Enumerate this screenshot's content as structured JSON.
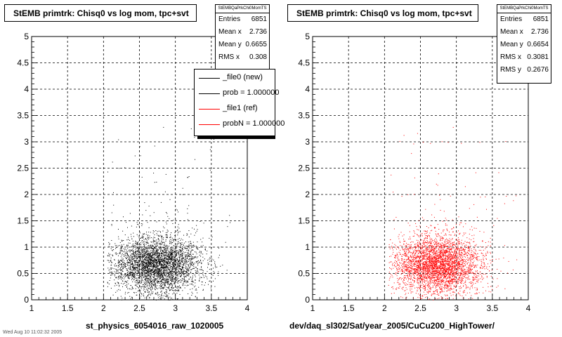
{
  "panels": [
    {
      "title": "StEMB primtrk: Chisq0 vs log mom, tpc+svt",
      "xlabel": "st_physics_6054016_raw_1020005",
      "stats": {
        "name": "StEMBQaPrkChi0MomTS",
        "rows": [
          {
            "label": "Entries",
            "value": "6851"
          },
          {
            "label": "Mean x",
            "value": "2.736"
          },
          {
            "label": "Mean y",
            "value": "0.6655"
          },
          {
            "label": "RMS x",
            "value": "0.308"
          }
        ]
      },
      "legend": [
        {
          "label": "_file0 (new)",
          "color": "#000000"
        },
        {
          "label": "prob = 1.000000",
          "color": "#000000"
        },
        {
          "label": "_file1 (ref)",
          "color": "#ff0000"
        },
        {
          "label": "probN = 1.000000",
          "color": "#ff0000"
        }
      ]
    },
    {
      "title": "StEMB primtrk: Chisq0 vs log mom, tpc+svt",
      "xlabel": "dev/daq_sl302/Sat/year_2005/CuCu200_HighTower/",
      "stats": {
        "name": "StEMBQaPrkChi0MomTS",
        "rows": [
          {
            "label": "Entries",
            "value": "6851"
          },
          {
            "label": "Mean x",
            "value": "2.736"
          },
          {
            "label": "Mean y",
            "value": "0.6654"
          },
          {
            "label": "RMS x",
            "value": "0.3081"
          },
          {
            "label": "RMS y",
            "value": "0.2676"
          }
        ]
      }
    }
  ],
  "footer": "Wed Aug 10 11:02:32 2005",
  "colors": {
    "new": "#000000",
    "ref": "#ff0000",
    "grid": "#000000",
    "background": "#ffffff"
  },
  "chart_data": [
    {
      "type": "scatter",
      "title": "StEMB primtrk: Chisq0 vs log mom, tpc+svt",
      "xlabel": "st_physics_6054016_raw_1020005",
      "ylabel": "",
      "xlim": [
        1,
        4
      ],
      "ylim": [
        0,
        5
      ],
      "xticks": [
        "1",
        "1.5",
        "2",
        "2.5",
        "3",
        "3.5",
        "4"
      ],
      "yticks": [
        "0",
        "0.5",
        "1",
        "1.5",
        "2",
        "2.5",
        "3",
        "3.5",
        "4",
        "4.5",
        "5"
      ],
      "grid": true,
      "series": [
        {
          "name": "_file0 (new)",
          "color": "#000000",
          "entries": 6851,
          "x_range": [
            2.05,
            3.85
          ],
          "y_range": [
            0.0,
            3.3
          ],
          "mean_x": 2.736,
          "mean_y": 0.6655,
          "rms_x": 0.308
        }
      ]
    },
    {
      "type": "scatter",
      "title": "StEMB primtrk: Chisq0 vs log mom, tpc+svt",
      "xlabel": "dev/daq_sl302/Sat/year_2005/CuCu200_HighTower/",
      "ylabel": "",
      "xlim": [
        1,
        4
      ],
      "ylim": [
        0,
        5
      ],
      "xticks": [
        "1",
        "1.5",
        "2",
        "2.5",
        "3",
        "3.5",
        "4"
      ],
      "yticks": [
        "0",
        "0.5",
        "1",
        "1.5",
        "2",
        "2.5",
        "3",
        "3.5",
        "4",
        "4.5",
        "5"
      ],
      "grid": true,
      "series": [
        {
          "name": "_file1 (ref)",
          "color": "#ff0000",
          "entries": 6851,
          "x_range": [
            2.05,
            3.85
          ],
          "y_range": [
            0.0,
            3.3
          ],
          "mean_x": 2.736,
          "mean_y": 0.6654,
          "rms_x": 0.3081,
          "rms_y": 0.2676
        }
      ]
    }
  ]
}
